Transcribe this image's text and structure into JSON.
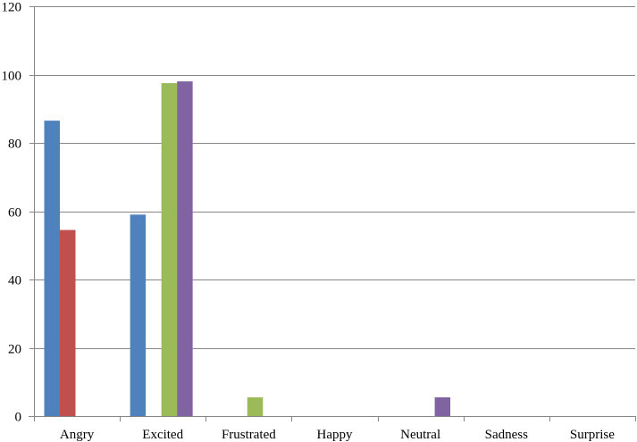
{
  "chart_data": {
    "type": "bar",
    "title": "",
    "xlabel": "",
    "ylabel": "",
    "categories": [
      "Angry",
      "Excited",
      "Frustrated",
      "Happy",
      "Neutral",
      "Sadness",
      "Surprise"
    ],
    "series": [
      {
        "color": "#4f81bd",
        "values": [
          86.5,
          59,
          0,
          0,
          0,
          0,
          0
        ]
      },
      {
        "color": "#c0504d",
        "values": [
          54.5,
          0,
          0,
          0,
          0,
          0,
          0
        ]
      },
      {
        "color": "#9bbb59",
        "values": [
          0,
          97.5,
          5.5,
          0,
          0,
          0,
          0
        ]
      },
      {
        "color": "#8064a2",
        "values": [
          0,
          98,
          0,
          0,
          5.5,
          0,
          0
        ]
      }
    ],
    "ylim": [
      0,
      120
    ],
    "yticks": [
      0,
      20,
      40,
      60,
      80,
      100,
      120
    ],
    "grid": true,
    "legend": "none"
  }
}
